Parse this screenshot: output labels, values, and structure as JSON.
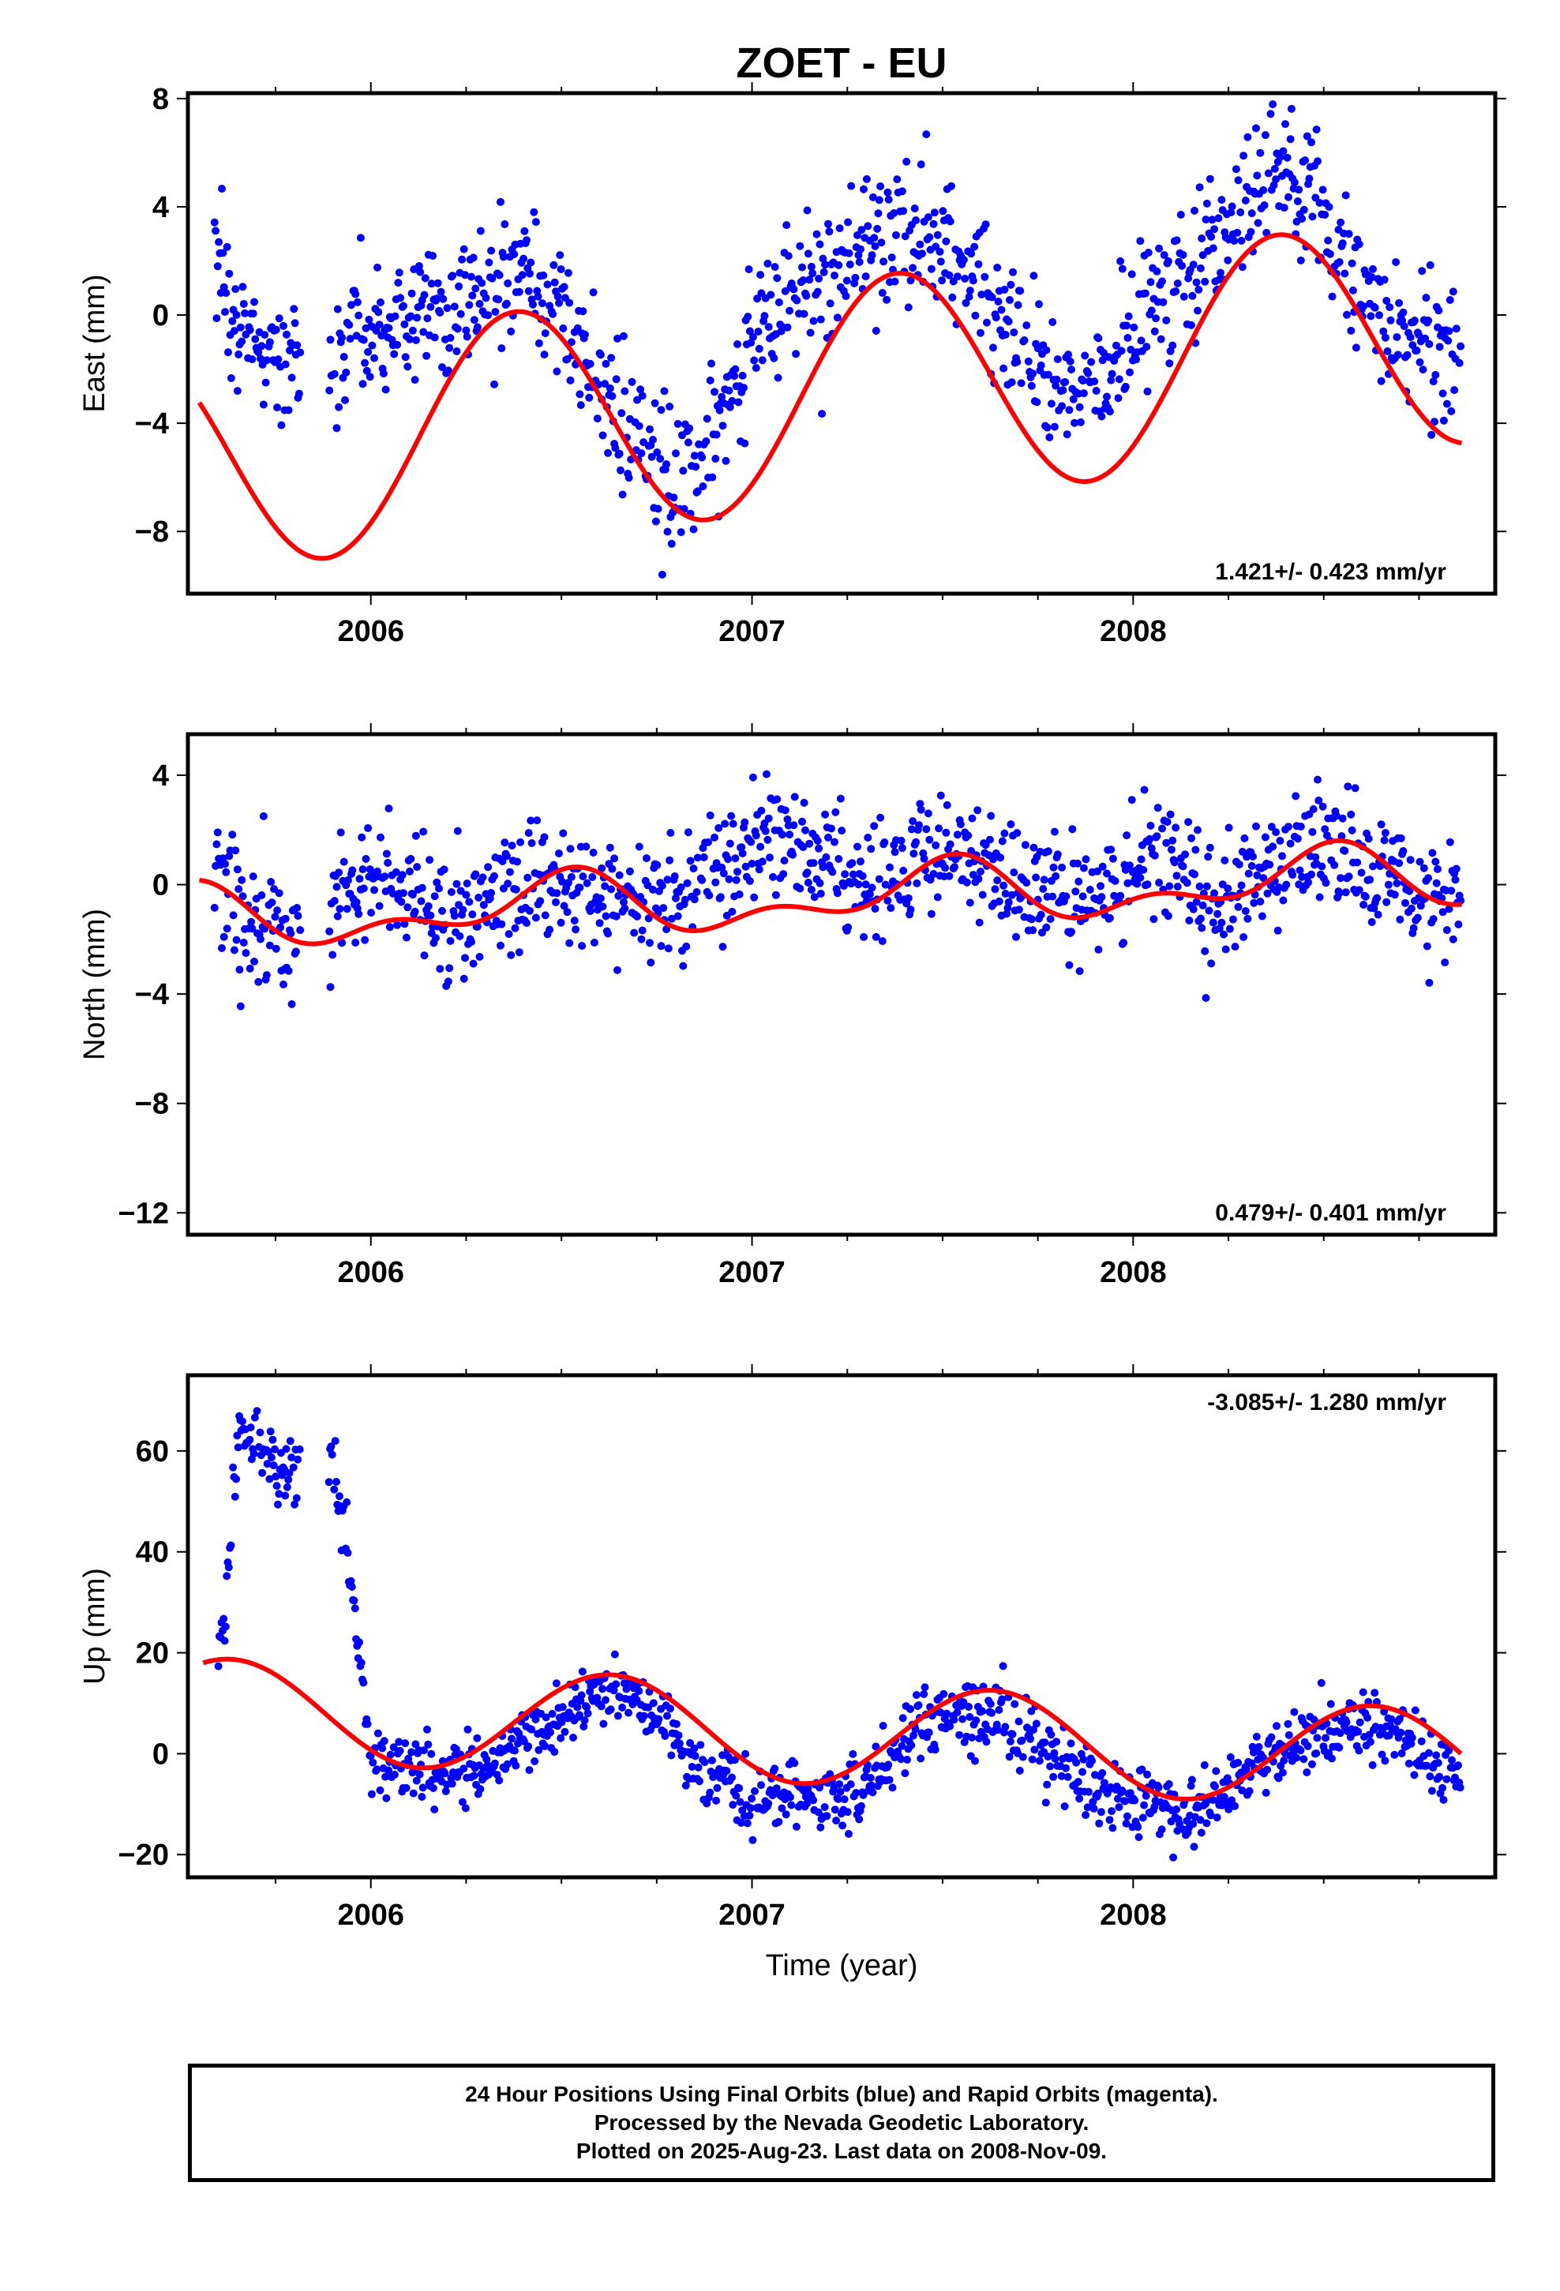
{
  "title": "ZOET - EU",
  "xlabel": "Time (year)",
  "footer": {
    "line1": "24 Hour Positions Using Final Orbits (blue) and Rapid Orbits (magenta).",
    "line2": "Processed by the Nevada Geodetic Laboratory.",
    "line3": "Plotted on 2025-Aug-23. Last data on 2008-Nov-09."
  },
  "colors": {
    "data": "#0000ff",
    "model": "#ff0000",
    "axis": "#000000"
  },
  "chart_data": [
    {
      "type": "scatter",
      "ylabel": "East (mm)",
      "xlim": [
        2005.52,
        2008.95
      ],
      "ylim": [
        -10.3,
        8.2
      ],
      "yticks": [
        -8,
        -4,
        0,
        4,
        8
      ],
      "xticks": [
        2006,
        2007,
        2008
      ],
      "xticklabels": [
        "2006",
        "2007",
        "2008"
      ],
      "yticklabels": [
        "−8",
        "−4",
        "0",
        "4",
        "8"
      ],
      "rate": "1.421+/- 0.423 mm/yr",
      "rate_position": "bottom-right",
      "model": {
        "rate": 1.421,
        "offset": -3.2,
        "annual_amp": 4.2,
        "annual_peak": 0.38,
        "semi_amp": 0.0,
        "semi_peak": 0.0
      },
      "scatter": 1.3,
      "series": [
        {
          "name": "",
          "x": [
            2005.59,
            2005.61,
            2005.65,
            2005.7,
            2005.75,
            2005.79,
            2005.9,
            2005.95,
            2006.0,
            2006.1,
            2006.2,
            2006.3,
            2006.4,
            2006.5,
            2006.6,
            2006.7,
            2006.8,
            2006.9,
            2007.0,
            2007.1,
            2007.2,
            2007.3,
            2007.4,
            2007.5,
            2007.6,
            2007.7,
            2007.8,
            2007.9,
            2008.0,
            2008.1,
            2008.2,
            2008.3,
            2008.4,
            2008.5,
            2008.6,
            2008.7,
            2008.8,
            2008.86
          ],
          "y": [
            2.0,
            1.0,
            -0.5,
            -1.5,
            -1.0,
            -2.0,
            -2.0,
            -1.0,
            -1.0,
            -0.3,
            0.5,
            0.8,
            1.7,
            0.2,
            -2.5,
            -4.5,
            -6.5,
            -4.5,
            -1.0,
            0.5,
            1.5,
            2.5,
            3.0,
            2.7,
            1.0,
            -1.0,
            -3.0,
            -2.5,
            -0.5,
            1.5,
            2.5,
            4.5,
            5.5,
            3.5,
            1.0,
            -0.5,
            -1.5,
            -1.5
          ]
        }
      ]
    },
    {
      "type": "scatter",
      "ylabel": "North (mm)",
      "xlim": [
        2005.52,
        2008.95
      ],
      "ylim": [
        -12.8,
        5.5
      ],
      "yticks": [
        -12,
        -8,
        -4,
        0,
        4
      ],
      "xticks": [
        2006,
        2007,
        2008
      ],
      "xticklabels": [
        "2006",
        "2007",
        "2008"
      ],
      "yticklabels": [
        "−12",
        "−8",
        "−4",
        "0",
        "4"
      ],
      "rate": "0.479+/- 0.401 mm/yr",
      "rate_position": "bottom-right",
      "model": {
        "rate": 0.479,
        "offset": -0.6,
        "annual_amp": 0.9,
        "annual_peak": 0.5,
        "semi_amp": 0.6,
        "semi_peak": 0.05
      },
      "scatter": 1.1,
      "series": [
        {
          "name": "",
          "x": [
            2005.59,
            2005.7,
            2005.8,
            2005.95,
            2006.05,
            2006.2,
            2006.3,
            2006.45,
            2006.55,
            2006.7,
            2006.8,
            2006.95,
            2007.05,
            2007.2,
            2007.3,
            2007.45,
            2007.55,
            2007.7,
            2007.8,
            2007.95,
            2008.05,
            2008.2,
            2008.3,
            2008.5,
            2008.6,
            2008.75,
            2008.86
          ],
          "y": [
            0.5,
            -1.5,
            -2.0,
            -0.5,
            0.0,
            -1.5,
            -1.0,
            0.5,
            0.0,
            -1.0,
            -0.5,
            0.5,
            2.0,
            1.0,
            -0.5,
            1.5,
            1.5,
            0.0,
            -0.5,
            0.0,
            1.5,
            -1.0,
            0.0,
            1.5,
            1.0,
            -0.5,
            -1.0
          ]
        }
      ]
    },
    {
      "type": "scatter",
      "ylabel": "Up (mm)",
      "xlim": [
        2005.52,
        2008.95
      ],
      "ylim": [
        -24.5,
        75
      ],
      "yticks": [
        -20,
        0,
        20,
        40,
        60
      ],
      "xticks": [
        2006,
        2007,
        2008
      ],
      "xticklabels": [
        "2006",
        "2007",
        "2008"
      ],
      "yticklabels": [
        "−20",
        "0",
        "20",
        "40",
        "60"
      ],
      "rate": "-3.085+/- 1.280 mm/yr",
      "rate_position": "top-right",
      "model": {
        "rate": -3.085,
        "offset": 4.5,
        "annual_amp": 10.0,
        "annual_peak": 0.63,
        "semi_amp": 0.0,
        "semi_peak": 0.0
      },
      "scatter": 3.3,
      "series": [
        {
          "name": "",
          "x": [
            2005.6,
            2005.62,
            2005.65,
            2005.7,
            2005.75,
            2005.8,
            2005.9,
            2005.93,
            2006.0,
            2006.1,
            2006.2,
            2006.3,
            2006.45,
            2006.55,
            2006.65,
            2006.75,
            2006.85,
            2007.0,
            2007.1,
            2007.2,
            2007.3,
            2007.45,
            2007.55,
            2007.65,
            2007.75,
            2007.85,
            2007.95,
            2008.05,
            2008.15,
            2008.3,
            2008.45,
            2008.6,
            2008.7,
            2008.8,
            2008.86
          ],
          "y": [
            22.0,
            27.0,
            64.0,
            62.0,
            58.0,
            56.0,
            58.0,
            46.0,
            -2.0,
            -3.0,
            -3.0,
            -2.0,
            5.0,
            10.0,
            13.0,
            7.0,
            -2.0,
            -9.0,
            -8.0,
            -9.0,
            -6.0,
            7.0,
            8.0,
            8.0,
            1.0,
            -4.0,
            -9.0,
            -9.0,
            -11.0,
            -3.0,
            3.0,
            6.0,
            4.0,
            -4.0,
            -6.0
          ]
        }
      ]
    }
  ]
}
